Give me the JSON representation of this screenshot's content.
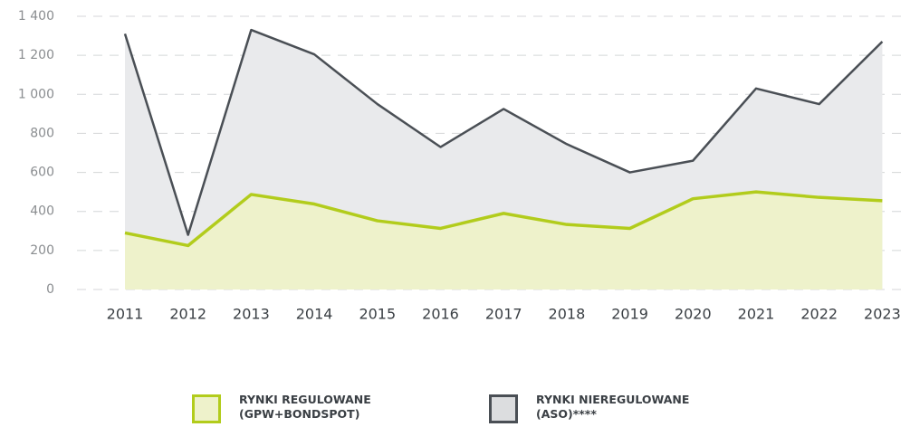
{
  "chart_data": {
    "type": "area-line",
    "categories": [
      "2011",
      "2012",
      "2013",
      "2014",
      "2015",
      "2016",
      "2017",
      "2018",
      "2019",
      "2020",
      "2021",
      "2022",
      "2023"
    ],
    "series": [
      {
        "name": "RYNKI NIEREGULOWANE (ASO)****",
        "color": "#4a4f55",
        "fill": "#e9eaec",
        "values": [
          1310,
          280,
          1330,
          1205,
          950,
          730,
          925,
          745,
          600,
          660,
          1030,
          950,
          1270
        ]
      },
      {
        "name": "RYNKI REGULOWANE (GPW+BONDSPOT)",
        "color": "#b2cc1c",
        "fill": "#eef2cb",
        "values": [
          290,
          225,
          487,
          438,
          352,
          313,
          390,
          333,
          313,
          465,
          500,
          472,
          455
        ]
      }
    ],
    "ylim": [
      0,
      1400
    ],
    "yticks": [
      0,
      200,
      400,
      600,
      800,
      {
        "value": 1000,
        "label": "1 000"
      },
      {
        "value": 1200,
        "label": "1 200"
      },
      {
        "value": 1400,
        "label": "1 400"
      }
    ],
    "grid": true
  }
}
